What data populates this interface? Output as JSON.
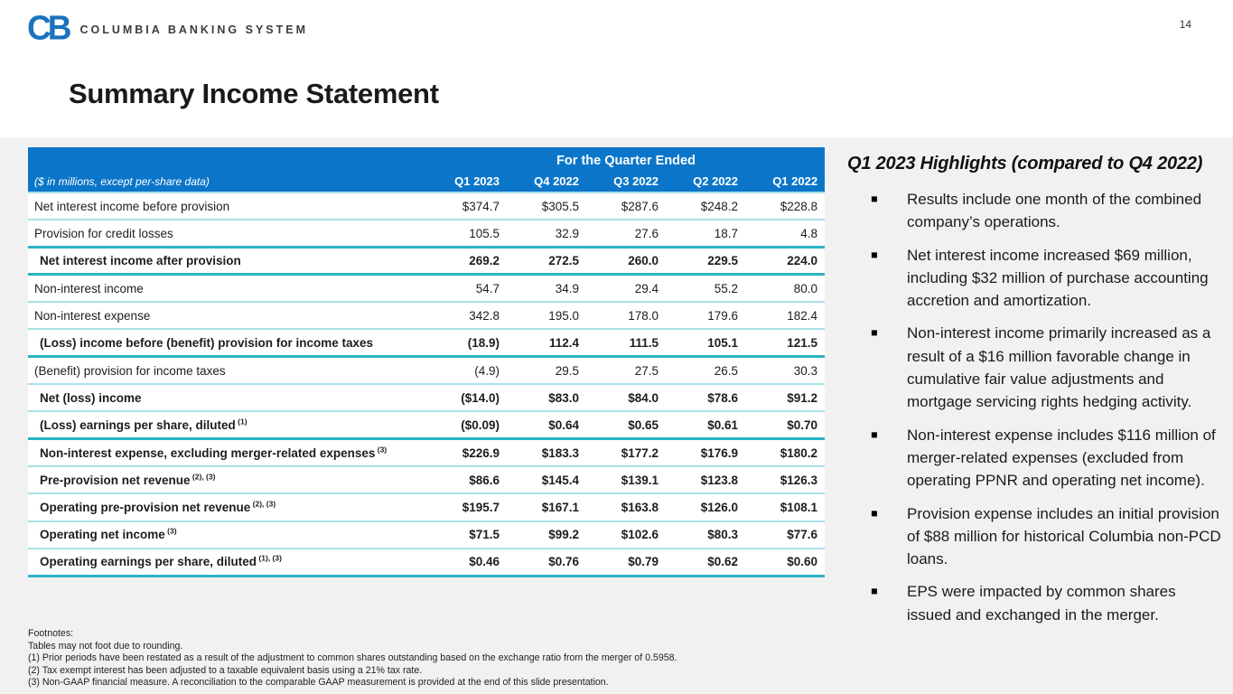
{
  "page": {
    "number": "14"
  },
  "logo": {
    "monogram": "CB",
    "wordmark": "COLUMBIA BANKING SYSTEM"
  },
  "title": "Summary Income Statement",
  "colors": {
    "header_blue": "#0b76c9",
    "divider_teal_thin": "#a9e0e8",
    "divider_teal_strong": "#2ab3c4",
    "panel_gray": "#f1f1f1",
    "logo_blue": "#1b73bd"
  },
  "table": {
    "group_header": "For the Quarter Ended",
    "caption": "($ in millions, except per-share data)",
    "columns": [
      "Q1 2023",
      "Q4 2022",
      "Q3 2022",
      "Q2 2022",
      "Q1 2022"
    ],
    "rows": [
      {
        "label": "Net interest income before provision",
        "sup": "",
        "bold": false,
        "thick_top": false,
        "thick_bottom": false,
        "values": [
          "$374.7",
          "$305.5",
          "$287.6",
          "$248.2",
          "$228.8"
        ]
      },
      {
        "label": "Provision for credit losses",
        "sup": "",
        "bold": false,
        "thick_top": false,
        "thick_bottom": false,
        "values": [
          "105.5",
          "32.9",
          "27.6",
          "18.7",
          "4.8"
        ]
      },
      {
        "label": "Net interest income after provision",
        "sup": "",
        "bold": true,
        "thick_top": true,
        "thick_bottom": true,
        "values": [
          "269.2",
          "272.5",
          "260.0",
          "229.5",
          "224.0"
        ]
      },
      {
        "label": "Non-interest income",
        "sup": "",
        "bold": false,
        "thick_top": false,
        "thick_bottom": false,
        "values": [
          "54.7",
          "34.9",
          "29.4",
          "55.2",
          "80.0"
        ]
      },
      {
        "label": "Non-interest expense",
        "sup": "",
        "bold": false,
        "thick_top": false,
        "thick_bottom": false,
        "values": [
          "342.8",
          "195.0",
          "178.0",
          "179.6",
          "182.4"
        ]
      },
      {
        "label": "(Loss) income before (benefit) provision for income taxes",
        "sup": "",
        "bold": true,
        "thick_top": false,
        "thick_bottom": true,
        "values": [
          "(18.9)",
          "112.4",
          "111.5",
          "105.1",
          "121.5"
        ]
      },
      {
        "label": "(Benefit) provision for income taxes",
        "sup": "",
        "bold": false,
        "thick_top": false,
        "thick_bottom": false,
        "values": [
          "(4.9)",
          "29.5",
          "27.5",
          "26.5",
          "30.3"
        ]
      },
      {
        "label": "Net (loss) income",
        "sup": "",
        "bold": true,
        "thick_top": false,
        "thick_bottom": false,
        "values": [
          "($14.0)",
          "$83.0",
          "$84.0",
          "$78.6",
          "$91.2"
        ]
      },
      {
        "label": "(Loss) earnings per share, diluted",
        "sup": "(1)",
        "bold": true,
        "thick_top": false,
        "thick_bottom": true,
        "values": [
          "($0.09)",
          "$0.64",
          "$0.65",
          "$0.61",
          "$0.70"
        ]
      },
      {
        "label": "Non-interest expense, excluding merger-related expenses",
        "sup": "(3)",
        "bold": true,
        "thick_top": false,
        "thick_bottom": false,
        "values": [
          "$226.9",
          "$183.3",
          "$177.2",
          "$176.9",
          "$180.2"
        ]
      },
      {
        "label": "Pre-provision net revenue",
        "sup": "(2), (3)",
        "bold": true,
        "thick_top": false,
        "thick_bottom": false,
        "values": [
          "$86.6",
          "$145.4",
          "$139.1",
          "$123.8",
          "$126.3"
        ]
      },
      {
        "label": "Operating pre-provision net revenue",
        "sup": "(2), (3)",
        "bold": true,
        "thick_top": false,
        "thick_bottom": false,
        "values": [
          "$195.7",
          "$167.1",
          "$163.8",
          "$126.0",
          "$108.1"
        ]
      },
      {
        "label": "Operating net income",
        "sup": "(3)",
        "bold": true,
        "thick_top": false,
        "thick_bottom": false,
        "values": [
          "$71.5",
          "$99.2",
          "$102.6",
          "$80.3",
          "$77.6"
        ]
      },
      {
        "label": "Operating earnings per share, diluted",
        "sup": "(1), (3)",
        "bold": true,
        "thick_top": false,
        "thick_bottom": true,
        "values": [
          "$0.46",
          "$0.76",
          "$0.79",
          "$0.62",
          "$0.60"
        ]
      }
    ]
  },
  "footnotes": {
    "lines": [
      "Footnotes:",
      "Tables may not foot due to rounding.",
      "(1) Prior periods have been restated as a result of the adjustment to common shares outstanding based on the exchange ratio from the merger of 0.5958.",
      "(2) Tax exempt interest has been adjusted to a taxable equivalent basis using a 21% tax rate.",
      "(3) Non-GAAP financial measure.  A reconciliation to the comparable GAAP measurement is provided at the end of this slide presentation."
    ]
  },
  "highlights": {
    "title": "Q1 2023 Highlights (compared to Q4 2022)",
    "bullet_glyph": "■",
    "bullets": [
      "Results include one month of the combined company’s operations.",
      "Net interest income increased $69 million, including $32 million of purchase accounting accretion and amortization.",
      "Non-interest income primarily increased as a result of a $16 million favorable change in cumulative fair value adjustments and mortgage servicing rights hedging activity.",
      "Non-interest expense includes $116 million of merger-related expenses (excluded from operating PPNR and operating net income).",
      "Provision expense includes an initial provision of $88 million for historical Columbia non-PCD loans.",
      "EPS were impacted by common shares issued and exchanged in the merger."
    ]
  }
}
